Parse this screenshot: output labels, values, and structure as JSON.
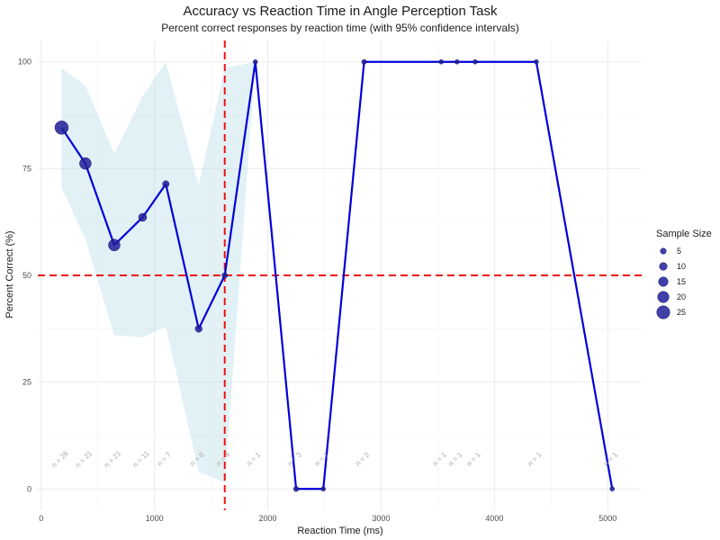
{
  "chart_data": {
    "type": "line",
    "title": "Accuracy vs Reaction Time in Angle Perception Task",
    "subtitle": "Percent correct responses by reaction time (with 95% confidence intervals)",
    "xlabel": "Reaction Time (ms)",
    "ylabel": "Percent Correct (%)",
    "xlim": [
      -30,
      5300
    ],
    "ylim": [
      -5,
      105
    ],
    "x_ticks": [
      0,
      1000,
      2000,
      3000,
      4000,
      5000
    ],
    "y_ticks": [
      0,
      25,
      50,
      75,
      100
    ],
    "grid": true,
    "line_color": "#0000d9",
    "point_color": "#1f1f99",
    "ci_color": "#add8e6",
    "reference_color": "#ee1111",
    "reference_lines": {
      "x": 1620,
      "y": 50
    },
    "points": [
      {
        "x": 180,
        "y": 84.6,
        "n": 26,
        "label": "n = 26"
      },
      {
        "x": 390,
        "y": 76.2,
        "n": 21,
        "label": "n = 21"
      },
      {
        "x": 645,
        "y": 57.1,
        "n": 21,
        "label": "n = 21"
      },
      {
        "x": 895,
        "y": 63.6,
        "n": 11,
        "label": "n = 11"
      },
      {
        "x": 1100,
        "y": 71.4,
        "n": 7,
        "label": "n = 7"
      },
      {
        "x": 1390,
        "y": 37.5,
        "n": 8,
        "label": "n = 8"
      },
      {
        "x": 1620,
        "y": 50,
        "n": 4,
        "label": "n = 4"
      },
      {
        "x": 1890,
        "y": 100,
        "n": 1,
        "label": "n = 1"
      },
      {
        "x": 2250,
        "y": 0,
        "n": 3,
        "label": "n = 3"
      },
      {
        "x": 2490,
        "y": 0,
        "n": 1,
        "label": "n = 1"
      },
      {
        "x": 2850,
        "y": 100,
        "n": 2,
        "label": "n = 2"
      },
      {
        "x": 3530,
        "y": 100,
        "n": 1,
        "label": "n = 1"
      },
      {
        "x": 3670,
        "y": 100,
        "n": 1,
        "label": "n = 1"
      },
      {
        "x": 3830,
        "y": 100,
        "n": 1,
        "label": "n = 1"
      },
      {
        "x": 4370,
        "y": 100,
        "n": 1,
        "label": "n = 1"
      },
      {
        "x": 5040,
        "y": 0,
        "n": 1,
        "label": "n = 1"
      }
    ],
    "ci_band": [
      {
        "x": 180,
        "lower": 70.5,
        "upper": 98.5
      },
      {
        "x": 390,
        "lower": 58.5,
        "upper": 94.5
      },
      {
        "x": 645,
        "lower": 36.0,
        "upper": 78.5
      },
      {
        "x": 895,
        "lower": 35.5,
        "upper": 92.0
      },
      {
        "x": 1100,
        "lower": 38.0,
        "upper": 100
      },
      {
        "x": 1390,
        "lower": 4.0,
        "upper": 71.0
      },
      {
        "x": 1620,
        "lower": 1.5,
        "upper": 98.5
      },
      {
        "x": 1890,
        "lower": 100,
        "upper": 100
      }
    ],
    "legend": {
      "title": "Sample Size",
      "position": "right",
      "entries": [
        {
          "label": "5",
          "size": 5
        },
        {
          "label": "10",
          "size": 10
        },
        {
          "label": "15",
          "size": 15
        },
        {
          "label": "20",
          "size": 20
        },
        {
          "label": "25",
          "size": 25
        }
      ]
    }
  }
}
